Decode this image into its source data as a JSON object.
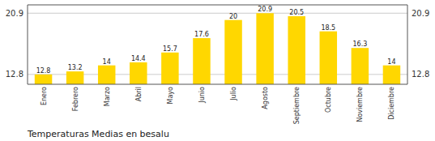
{
  "chart_data": {
    "type": "bar",
    "title": "Temperaturas Medias en besalu",
    "categories": [
      "Enero",
      "Febrero",
      "Marzo",
      "Abril",
      "Mayo",
      "Junio",
      "Julio",
      "Agosto",
      "Septiembre",
      "Octubre",
      "Noviembre",
      "Diciembre"
    ],
    "values": [
      12.8,
      13.2,
      14.0,
      14.4,
      15.7,
      17.6,
      20.0,
      20.9,
      20.5,
      18.5,
      16.3,
      14.0
    ],
    "color": "#FFD700",
    "ylim": [
      11.5,
      22.0
    ],
    "yticks": [
      12.8,
      20.9
    ],
    "grid": true,
    "data_labels": true
  }
}
